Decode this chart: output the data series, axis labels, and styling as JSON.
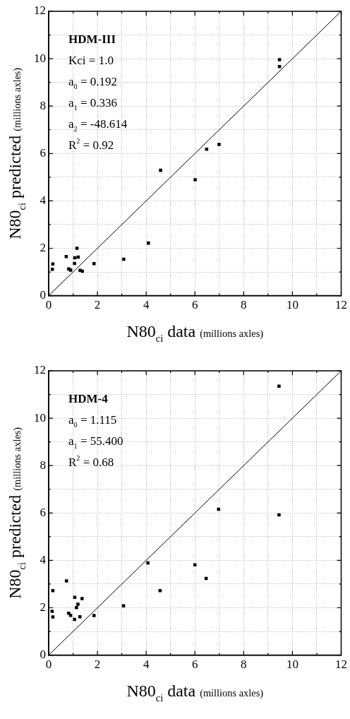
{
  "chart_data": [
    {
      "type": "scatter",
      "xlabel": "N80$_{ci}$ data (millions axles)",
      "ylabel": "N80$_{ci}$ predicted (millions axles)",
      "annotations": [
        "HDM-III",
        "Kci = 1.0",
        "a$_{0}$ = 0.192",
        "a$_{1}$ = 0.336",
        "a$_{2}$ = -48.614",
        "R$^{2}$ = 0.92"
      ],
      "xlim": [
        0,
        12
      ],
      "ylim": [
        0,
        12
      ],
      "xticks": [
        0,
        {
          "value": 1,
          "label": null
        },
        2,
        {
          "value": 3,
          "label": null
        },
        4,
        {
          "value": 5,
          "label": null
        },
        6,
        {
          "value": 7,
          "label": null
        },
        8,
        {
          "value": 9,
          "label": null
        },
        10,
        {
          "value": 11,
          "label": null
        },
        12
      ],
      "yticks": [
        0,
        {
          "value": 1,
          "label": null
        },
        2,
        {
          "value": 3,
          "label": null
        },
        4,
        {
          "value": 5,
          "label": null
        },
        6,
        {
          "value": 7,
          "label": null
        },
        8,
        {
          "value": 9,
          "label": null
        },
        10,
        {
          "value": 11,
          "label": null
        },
        12
      ],
      "grid": true,
      "legend": false,
      "marker": "square",
      "series": [
        {
          "color": "#000000",
          "x": [
            9.47,
            9.47,
            6.99,
            6.48,
            4.59,
            6.01,
            4.09,
            3.08,
            1.86,
            1.16,
            0.72,
            1.07,
            1.21,
            1.06,
            0.17,
            0.15,
            0.82,
            0.9,
            1.29,
            1.38
          ],
          "values": [
            9.96,
            9.67,
            6.38,
            6.18,
            5.29,
            4.89,
            2.22,
            1.54,
            1.35,
            2.0,
            1.65,
            1.6,
            1.63,
            1.36,
            1.34,
            1.11,
            1.13,
            1.08,
            1.07,
            1.03
          ]
        },
        {
          "type": "line",
          "color": "#000000",
          "marker": "none",
          "x": [
            0,
            12
          ],
          "values": [
            0,
            12
          ]
        }
      ]
    },
    {
      "type": "scatter",
      "xlabel": "N80$_{ci}$ data (millions axles)",
      "ylabel": "N80$_{ci}$ predicted (millions axles)",
      "annotations": [
        "HDM-4",
        "a$_{0}$ = 1.115",
        "a$_{1}$ = 55.400",
        "R$^{2}$ = 0.68"
      ],
      "xlim": [
        0,
        12
      ],
      "ylim": [
        0,
        12
      ],
      "xticks": [
        0,
        {
          "value": 1,
          "label": null
        },
        2,
        {
          "value": 3,
          "label": null
        },
        4,
        {
          "value": 5,
          "label": null
        },
        6,
        {
          "value": 7,
          "label": null
        },
        8,
        {
          "value": 9,
          "label": null
        },
        10,
        {
          "value": 11,
          "label": null
        },
        12
      ],
      "yticks": [
        0,
        {
          "value": 1,
          "label": null
        },
        2,
        {
          "value": 3,
          "label": null
        },
        4,
        {
          "value": 5,
          "label": null
        },
        6,
        {
          "value": 7,
          "label": null
        },
        8,
        {
          "value": 9,
          "label": null
        },
        10,
        {
          "value": 11,
          "label": null
        },
        12
      ],
      "grid": true,
      "legend": false,
      "marker": "square",
      "series": [
        {
          "color": "#000000",
          "x": [
            9.45,
            6.97,
            9.45,
            4.07,
            6.0,
            6.46,
            4.57,
            0.73,
            0.17,
            1.07,
            1.37,
            1.2,
            1.14,
            3.07,
            1.86,
            0.14,
            0.17,
            0.82,
            0.9,
            1.06,
            1.28
          ],
          "values": [
            11.35,
            6.16,
            5.92,
            3.89,
            3.81,
            3.24,
            2.72,
            3.13,
            2.72,
            2.44,
            2.39,
            2.15,
            2.01,
            2.08,
            1.67,
            1.85,
            1.61,
            1.77,
            1.68,
            1.51,
            1.62
          ]
        },
        {
          "type": "line",
          "color": "#000000",
          "marker": "none",
          "x": [
            0,
            12
          ],
          "values": [
            0,
            12
          ]
        }
      ]
    }
  ]
}
